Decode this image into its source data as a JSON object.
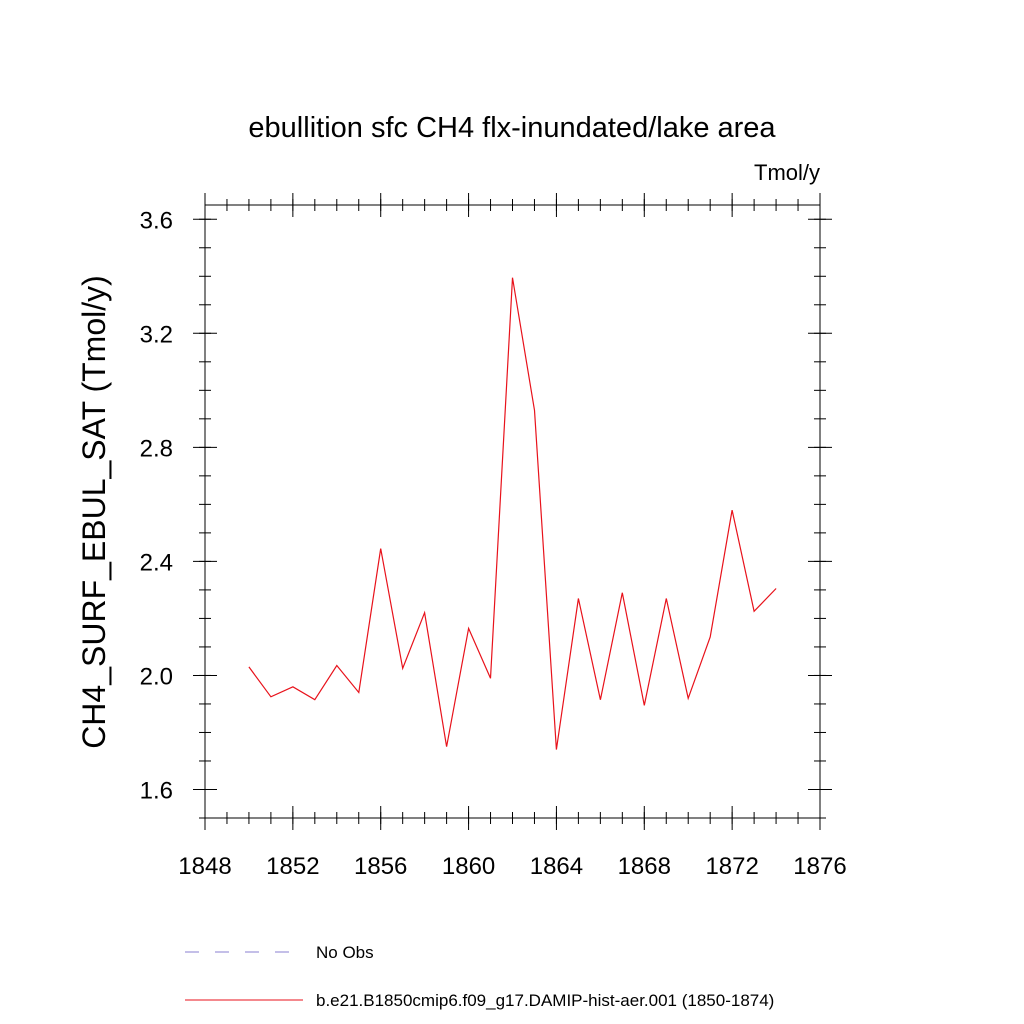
{
  "chart_data": {
    "type": "line",
    "title": "ebullition sfc CH4 flx-inundated/lake area",
    "units_label": "Tmol/y",
    "ylabel": "CH4_SURF_EBUL_SAT  (Tmol/y)",
    "xlabel": "",
    "xlim": [
      1848,
      1876
    ],
    "ylim": [
      1.5,
      3.65
    ],
    "x_major_ticks": [
      1848,
      1852,
      1856,
      1860,
      1864,
      1868,
      1872,
      1876
    ],
    "x_tick_labels": [
      "1848",
      "1852",
      "1856",
      "1860",
      "1864",
      "1868",
      "1872",
      "1876"
    ],
    "x_minor_step": 1,
    "y_major_ticks": [
      1.6,
      2.0,
      2.4,
      2.8,
      3.2,
      3.6
    ],
    "y_tick_labels": [
      "1.6",
      "2.0",
      "2.4",
      "2.8",
      "3.2",
      "3.6"
    ],
    "y_minor_step": 0.1,
    "grid": false,
    "legend_position": "bottom",
    "series": [
      {
        "name": "b.e21.B1850cmip6.f09_g17.DAMIP-hist-aer.001 (1850-1874)",
        "color": "#e8121b",
        "style": "solid",
        "x": [
          1850,
          1851,
          1852,
          1853,
          1854,
          1855,
          1856,
          1857,
          1858,
          1859,
          1860,
          1861,
          1862,
          1863,
          1864,
          1865,
          1866,
          1867,
          1868,
          1869,
          1870,
          1871,
          1872,
          1873,
          1874
        ],
        "y": [
          2.03,
          1.925,
          1.96,
          1.915,
          2.035,
          1.94,
          2.445,
          2.025,
          2.22,
          1.75,
          2.165,
          1.99,
          3.395,
          2.93,
          1.74,
          2.27,
          1.915,
          2.29,
          1.895,
          2.27,
          1.92,
          2.135,
          2.58,
          2.225,
          2.305
        ]
      }
    ],
    "legend": [
      {
        "label": "No Obs",
        "color": "#8a7fd0",
        "style": "dashed"
      },
      {
        "label": "b.e21.B1850cmip6.f09_g17.DAMIP-hist-aer.001 (1850-1874)",
        "color": "#e8121b",
        "style": "solid"
      }
    ]
  }
}
